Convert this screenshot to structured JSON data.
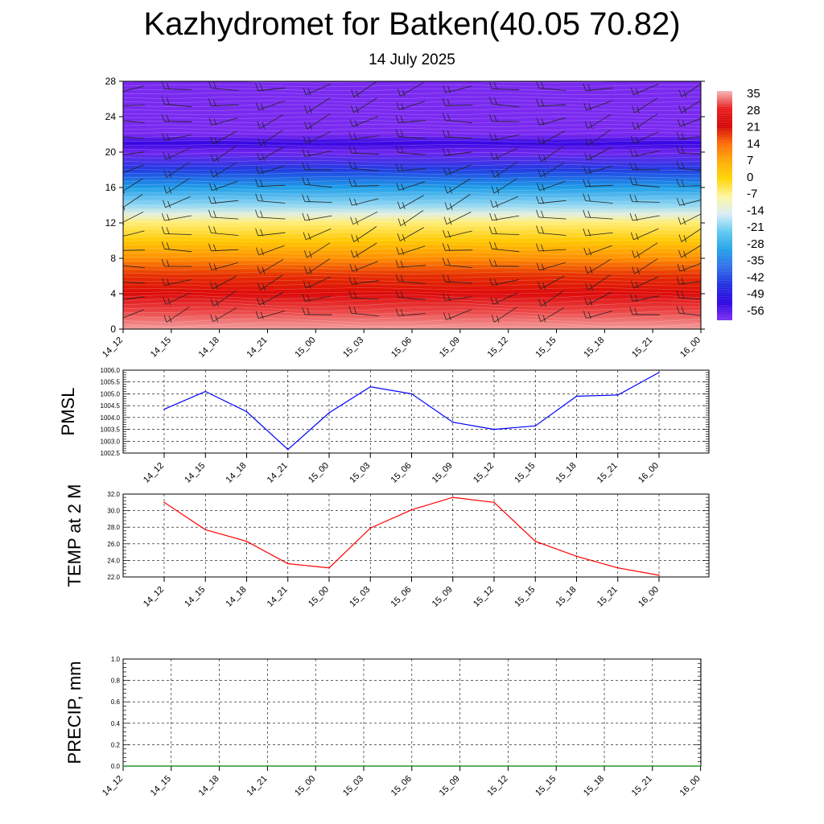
{
  "title": "Kazhydromet for Batken(40.05 70.82)",
  "subtitle": "14 July 2025",
  "chart_data": [
    {
      "type": "heatmap",
      "description_free": true,
      "x": [
        "14_12",
        "14_15",
        "14_18",
        "14_21",
        "15_00",
        "15_03",
        "15_06",
        "15_09",
        "15_12",
        "15_15",
        "15_18",
        "15_21",
        "16_00"
      ],
      "y_ticks": [
        0,
        4,
        8,
        12,
        16,
        20,
        24,
        28
      ],
      "ylim": [
        0,
        28
      ],
      "colorbar_labels": [
        "35",
        "28",
        "21",
        "14",
        "7",
        "0",
        "-7",
        "-14",
        "-21",
        "-28",
        "-35",
        "-42",
        "-49",
        "-56"
      ],
      "colorbar_colors": [
        "#f5b6b6",
        "#e81818",
        "#d40000",
        "#ff6a00",
        "#ffaa00",
        "#ffd500",
        "#fff6a0",
        "#d8ecf8",
        "#5ac8f0",
        "#1e9ee8",
        "#2a6ae8",
        "#1c2ae0",
        "#2a00e0",
        "#7a2af0"
      ],
      "levels_temp": [
        {
          "y": 0,
          "value": 34
        },
        {
          "y": 2,
          "value": 30
        },
        {
          "y": 4,
          "value": 24
        },
        {
          "y": 6,
          "value": 18
        },
        {
          "y": 8,
          "value": 10
        },
        {
          "y": 10,
          "value": 2
        },
        {
          "y": 12,
          "value": -5
        },
        {
          "y": 13,
          "value": -12
        },
        {
          "y": 14,
          "value": -18
        },
        {
          "y": 16,
          "value": -28
        },
        {
          "y": 18,
          "value": -40
        },
        {
          "y": 20,
          "value": -55
        },
        {
          "y": 21,
          "value": -50
        },
        {
          "y": 22,
          "value": -60
        },
        {
          "y": 28,
          "value": -60
        }
      ]
    },
    {
      "type": "line",
      "ylabel": "PMSL",
      "x": [
        "14_12",
        "14_15",
        "14_18",
        "14_21",
        "15_00",
        "15_03",
        "15_06",
        "15_09",
        "15_12",
        "15_15",
        "15_18",
        "15_21",
        "16_00"
      ],
      "series": [
        {
          "color": "#0000ff",
          "values": [
            1004.35,
            1005.1,
            1004.25,
            1002.65,
            1004.2,
            1005.3,
            1005.0,
            1003.8,
            1003.5,
            1003.65,
            1004.9,
            1004.95,
            1005.9
          ]
        }
      ],
      "ylim": [
        1002.5,
        1006.0
      ],
      "yticks": [
        "1002.5",
        "1003.0",
        "1003.5",
        "1004.0",
        "1004.5",
        "1005.0",
        "1005.5",
        "1006.0"
      ],
      "grid": true
    },
    {
      "type": "line",
      "ylabel": "TEMP at 2 M",
      "x": [
        "14_12",
        "14_15",
        "14_18",
        "14_21",
        "15_00",
        "15_03",
        "15_06",
        "15_09",
        "15_12",
        "15_15",
        "15_18",
        "15_21",
        "16_00"
      ],
      "series": [
        {
          "color": "#ff0000",
          "values": [
            31.0,
            27.7,
            26.3,
            23.6,
            23.1,
            27.9,
            30.1,
            31.6,
            31.0,
            26.3,
            24.5,
            23.1,
            22.2
          ]
        }
      ],
      "ylim": [
        22.0,
        32.0
      ],
      "yticks": [
        "22.0",
        "24.0",
        "26.0",
        "28.0",
        "30.0",
        "32.0"
      ],
      "grid": true
    },
    {
      "type": "line",
      "ylabel": "PRECIP, mm",
      "x": [
        "14_12",
        "14_15",
        "14_18",
        "14_21",
        "15_00",
        "15_03",
        "15_06",
        "15_09",
        "15_12",
        "15_15",
        "15_18",
        "15_21",
        "16_00"
      ],
      "series": [
        {
          "color": "#008000",
          "values": [
            0,
            0,
            0,
            0,
            0,
            0,
            0,
            0,
            0,
            0,
            0,
            0,
            0
          ]
        }
      ],
      "ylim": [
        0,
        1.0
      ],
      "yticks": [
        "0.0",
        "0.2",
        "0.4",
        "0.6",
        "0.8",
        "1.0"
      ],
      "grid": true
    }
  ]
}
